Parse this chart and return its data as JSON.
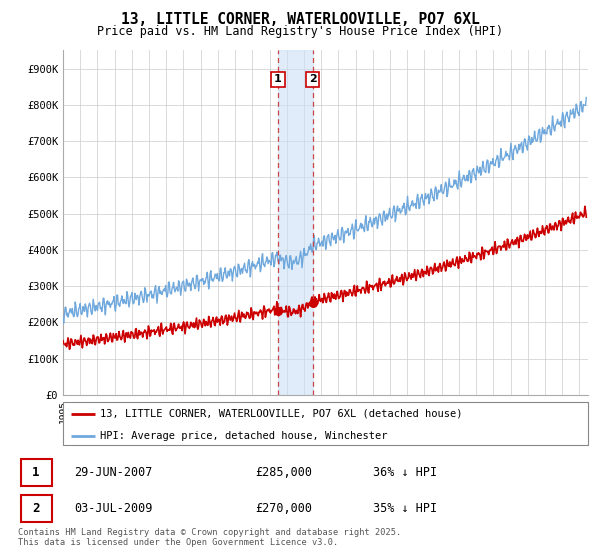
{
  "title": "13, LITTLE CORNER, WATERLOOVILLE, PO7 6XL",
  "subtitle": "Price paid vs. HM Land Registry's House Price Index (HPI)",
  "ylabel_ticks": [
    "£0",
    "£100K",
    "£200K",
    "£300K",
    "£400K",
    "£500K",
    "£600K",
    "£700K",
    "£800K",
    "£900K"
  ],
  "ytick_values": [
    0,
    100000,
    200000,
    300000,
    400000,
    500000,
    600000,
    700000,
    800000,
    900000
  ],
  "ylim": [
    0,
    950000
  ],
  "xlim_start": 1995.0,
  "xlim_end": 2025.5,
  "hpi_color": "#6fa8dc",
  "price_color": "#cc0000",
  "marker1_date": 2007.49,
  "marker2_date": 2009.5,
  "marker1_price": 285000,
  "marker2_price": 270000,
  "sale1_label": "29-JUN-2007",
  "sale1_price": "£285,000",
  "sale1_hpi": "36% ↓ HPI",
  "sale2_label": "03-JUL-2009",
  "sale2_price": "£270,000",
  "sale2_hpi": "35% ↓ HPI",
  "legend_line1": "13, LITTLE CORNER, WATERLOOVILLE, PO7 6XL (detached house)",
  "legend_line2": "HPI: Average price, detached house, Winchester",
  "footnote": "Contains HM Land Registry data © Crown copyright and database right 2025.\nThis data is licensed under the Open Government Licence v3.0.",
  "background_color": "#ffffff",
  "grid_color": "#cccccc"
}
